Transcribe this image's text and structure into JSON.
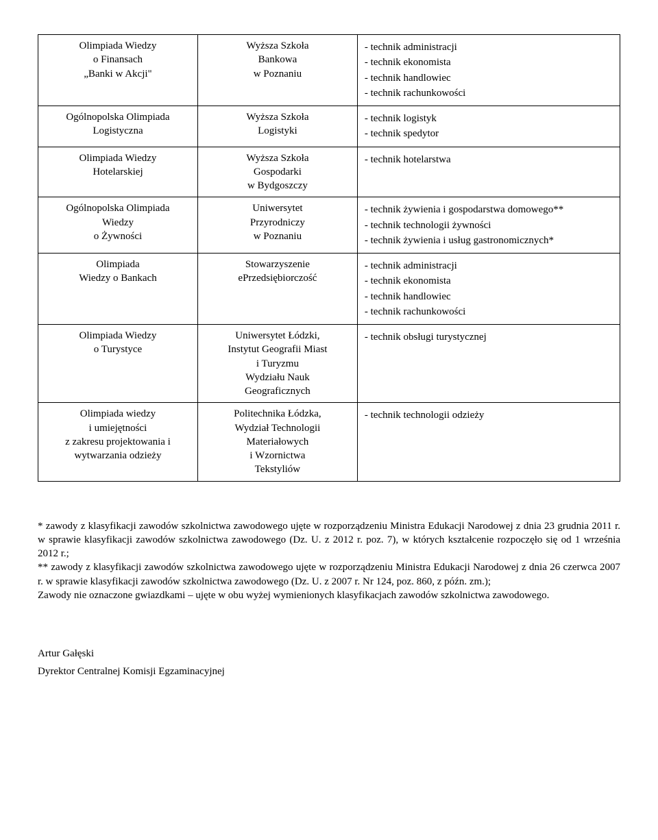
{
  "table": {
    "rows": [
      {
        "c1_lines": [
          "Olimpiada Wiedzy",
          "o Finansach",
          "„Banki w Akcji\""
        ],
        "c2_lines": [
          "Wyższa Szkoła",
          "Bankowa",
          "w Poznaniu"
        ],
        "c3_items": [
          "- technik administracji",
          "- technik ekonomista",
          "- technik handlowiec",
          "- technik rachunkowości"
        ]
      },
      {
        "c1_lines": [
          "Ogólnopolska Olimpiada",
          "Logistyczna"
        ],
        "c2_lines": [
          "Wyższa Szkoła",
          "Logistyki"
        ],
        "c3_items": [
          "- technik logistyk",
          "- technik spedytor"
        ]
      },
      {
        "c1_lines": [
          "Olimpiada Wiedzy",
          "Hotelarskiej"
        ],
        "c2_lines": [
          "Wyższa Szkoła",
          "Gospodarki",
          "w Bydgoszczy"
        ],
        "c3_items": [
          "- technik hotelarstwa"
        ]
      },
      {
        "c1_lines": [
          "Ogólnopolska Olimpiada",
          "Wiedzy",
          "o Żywności"
        ],
        "c2_lines": [
          "Uniwersytet",
          "Przyrodniczy",
          "w Poznaniu"
        ],
        "c3_items": [
          "- technik żywienia i gospodarstwa domowego**",
          "- technik technologii żywności",
          "- technik żywienia i usług gastronomicznych*"
        ]
      },
      {
        "c1_lines": [
          "Olimpiada",
          "Wiedzy o Bankach"
        ],
        "c2_lines": [
          "Stowarzyszenie",
          "ePrzedsiębiorczość"
        ],
        "c3_items": [
          "- technik administracji",
          "- technik ekonomista",
          "- technik handlowiec",
          "- technik rachunkowości"
        ]
      },
      {
        "c1_lines": [
          "Olimpiada Wiedzy",
          "o Turystyce"
        ],
        "c2_lines": [
          "Uniwersytet Łódzki,",
          "Instytut Geografii Miast",
          "i Turyzmu",
          "Wydziału Nauk",
          "Geograficznych"
        ],
        "c3_items": [
          "- technik obsługi turystycznej"
        ]
      },
      {
        "c1_lines": [
          "Olimpiada wiedzy",
          "i umiejętności",
          "z zakresu projektowania i",
          "wytwarzania odzieży"
        ],
        "c2_lines": [
          "Politechnika Łódzka,",
          "Wydział Technologii",
          "Materiałowych",
          "i Wzornictwa",
          "Tekstyliów"
        ],
        "c3_items": [
          "- technik technologii odzieży"
        ]
      }
    ]
  },
  "notes": {
    "p1": "* zawody z klasyfikacji zawodów szkolnictwa zawodowego ujęte w rozporządzeniu Ministra Edukacji Narodowej z dnia 23 grudnia 2011 r. w sprawie klasyfikacji zawodów szkolnictwa zawodowego (Dz. U. z 2012 r. poz. 7), w których kształcenie rozpoczęło się od 1 września 2012 r.;",
    "p2": "** zawody z klasyfikacji zawodów szkolnictwa zawodowego ujęte w rozporządzeniu Ministra Edukacji Narodowej z dnia 26 czerwca 2007 r. w sprawie klasyfikacji zawodów szkolnictwa zawodowego (Dz. U. z 2007 r. Nr 124, poz. 860, z późn. zm.);",
    "p3": "Zawody nie oznaczone gwiazdkami – ujęte w obu wyżej wymienionych klasyfikacjach zawodów szkolnictwa zawodowego."
  },
  "signature": {
    "name": "Artur Gałęski",
    "title": "Dyrektor Centralnej Komisji Egzaminacyjnej"
  }
}
